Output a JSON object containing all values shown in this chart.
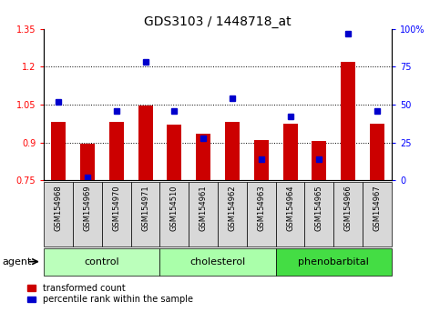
{
  "title": "GDS3103 / 1448718_at",
  "samples": [
    "GSM154968",
    "GSM154969",
    "GSM154970",
    "GSM154971",
    "GSM154510",
    "GSM154961",
    "GSM154962",
    "GSM154963",
    "GSM154964",
    "GSM154965",
    "GSM154966",
    "GSM154967"
  ],
  "red_values": [
    0.98,
    0.895,
    0.98,
    1.047,
    0.97,
    0.935,
    0.98,
    0.908,
    0.975,
    0.905,
    1.22,
    0.975
  ],
  "blue_values_pct": [
    52,
    2,
    46,
    78,
    46,
    28,
    54,
    14,
    42,
    14,
    97,
    46
  ],
  "groups": [
    {
      "label": "control",
      "start": 0,
      "end": 3,
      "color": "#bbffbb"
    },
    {
      "label": "cholesterol",
      "start": 4,
      "end": 7,
      "color": "#aaffaa"
    },
    {
      "label": "phenobarbital",
      "start": 8,
      "end": 11,
      "color": "#44dd44"
    }
  ],
  "ylim_left": [
    0.75,
    1.35
  ],
  "ylim_right": [
    0,
    100
  ],
  "yticks_left": [
    0.75,
    0.9,
    1.05,
    1.2,
    1.35
  ],
  "yticks_right": [
    0,
    25,
    50,
    75,
    100
  ],
  "ytick_labels_left": [
    "0.75",
    "0.9",
    "1.05",
    "1.2",
    "1.35"
  ],
  "ytick_labels_right": [
    "0",
    "25",
    "50",
    "75",
    "100%"
  ],
  "hlines": [
    0.9,
    1.05,
    1.2
  ],
  "bar_color": "#cc0000",
  "dot_color": "#0000cc",
  "bar_width": 0.5,
  "agent_label": "agent",
  "sample_box_color": "#d8d8d8",
  "title_fontsize": 10,
  "tick_fontsize": 7,
  "label_fontsize": 8,
  "sample_fontsize": 6
}
